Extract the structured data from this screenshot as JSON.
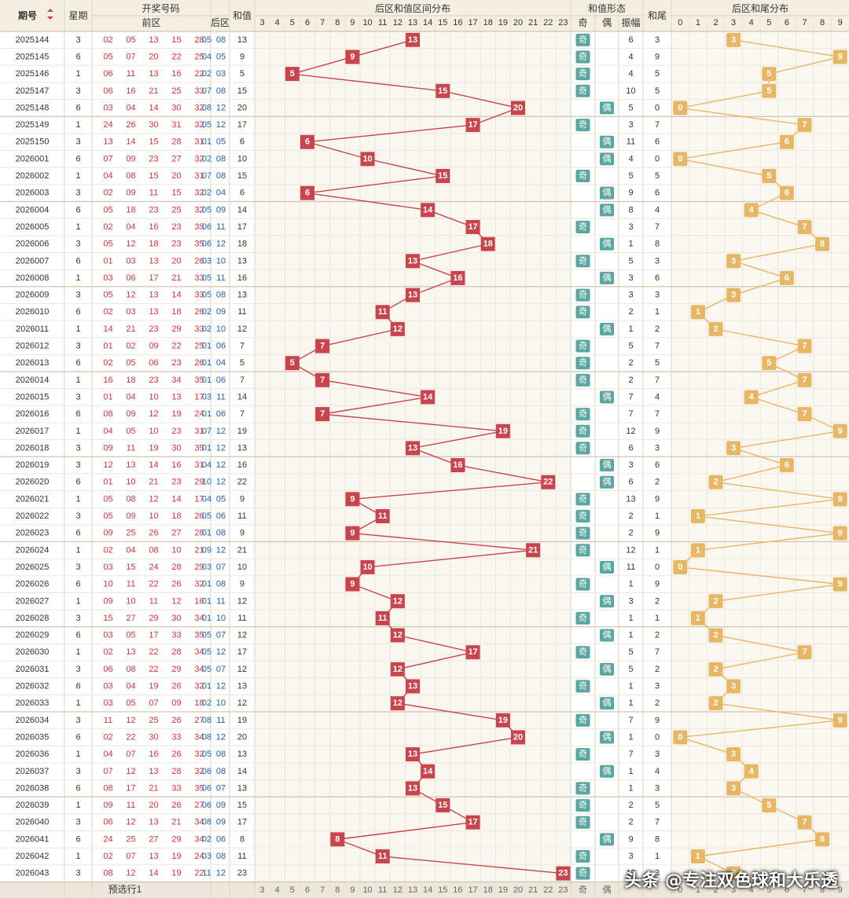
{
  "headers": {
    "issue": "期号",
    "weekday": "星期",
    "draw_numbers": "开奖号码",
    "front": "前区",
    "back": "后区",
    "sum": "和值",
    "sum_dist": "后区和值区间分布",
    "sum_form": "和值形态",
    "odd": "奇",
    "even": "偶",
    "amplitude": "振幅",
    "tail": "和尾",
    "tail_dist": "后区和尾分布"
  },
  "footer": {
    "preselect": "预选行1"
  },
  "watermark": "头条 @专注双色球和大乐透",
  "colors": {
    "front": "#d0343e",
    "back": "#1f5fae",
    "sum_marker": "#c8454e",
    "tail_marker": "#e8b765",
    "odd_badge": "#5aa7a1"
  },
  "chart_data": {
    "type": "table",
    "sum_columns": [
      3,
      4,
      5,
      6,
      7,
      8,
      9,
      10,
      11,
      12,
      13,
      14,
      15,
      16,
      17,
      18,
      19,
      20,
      21,
      22,
      23
    ],
    "tail_columns": [
      0,
      1,
      2,
      3,
      4,
      5,
      6,
      7,
      8,
      9
    ],
    "rows": [
      {
        "issue": "2025144",
        "wd": 3,
        "front": [
          "02",
          "05",
          "13",
          "15",
          "28"
        ],
        "back": [
          "05",
          "08"
        ],
        "sum": 13,
        "parity": "奇",
        "amp": 6,
        "tail": 3
      },
      {
        "issue": "2025145",
        "wd": 6,
        "front": [
          "05",
          "07",
          "20",
          "22",
          "25"
        ],
        "back": [
          "04",
          "05"
        ],
        "sum": 9,
        "parity": "奇",
        "amp": 4,
        "tail": 9
      },
      {
        "issue": "2025146",
        "wd": 1,
        "front": [
          "06",
          "11",
          "13",
          "16",
          "22"
        ],
        "back": [
          "02",
          "03"
        ],
        "sum": 5,
        "parity": "奇",
        "amp": 4,
        "tail": 5
      },
      {
        "issue": "2025147",
        "wd": 3,
        "front": [
          "06",
          "16",
          "21",
          "25",
          "33"
        ],
        "back": [
          "07",
          "08"
        ],
        "sum": 15,
        "parity": "奇",
        "amp": 10,
        "tail": 5
      },
      {
        "issue": "2025148",
        "wd": 6,
        "front": [
          "03",
          "04",
          "14",
          "30",
          "32"
        ],
        "back": [
          "08",
          "12"
        ],
        "sum": 20,
        "parity": "偶",
        "amp": 5,
        "tail": 0
      },
      {
        "issue": "2025149",
        "wd": 1,
        "front": [
          "24",
          "26",
          "30",
          "31",
          "32"
        ],
        "back": [
          "05",
          "12"
        ],
        "sum": 17,
        "parity": "奇",
        "amp": 3,
        "tail": 7
      },
      {
        "issue": "2025150",
        "wd": 3,
        "front": [
          "13",
          "14",
          "15",
          "28",
          "31"
        ],
        "back": [
          "01",
          "05"
        ],
        "sum": 6,
        "parity": "偶",
        "amp": 11,
        "tail": 6
      },
      {
        "issue": "2026001",
        "wd": 6,
        "front": [
          "07",
          "09",
          "23",
          "27",
          "32"
        ],
        "back": [
          "02",
          "08"
        ],
        "sum": 10,
        "parity": "偶",
        "amp": 4,
        "tail": 0
      },
      {
        "issue": "2026002",
        "wd": 1,
        "front": [
          "04",
          "08",
          "15",
          "20",
          "31"
        ],
        "back": [
          "07",
          "08"
        ],
        "sum": 15,
        "parity": "奇",
        "amp": 5,
        "tail": 5
      },
      {
        "issue": "2026003",
        "wd": 3,
        "front": [
          "02",
          "09",
          "11",
          "15",
          "32"
        ],
        "back": [
          "02",
          "04"
        ],
        "sum": 6,
        "parity": "偶",
        "amp": 9,
        "tail": 6
      },
      {
        "issue": "2026004",
        "wd": 6,
        "front": [
          "05",
          "18",
          "23",
          "25",
          "32"
        ],
        "back": [
          "05",
          "09"
        ],
        "sum": 14,
        "parity": "偶",
        "amp": 8,
        "tail": 4
      },
      {
        "issue": "2026005",
        "wd": 1,
        "front": [
          "02",
          "04",
          "16",
          "23",
          "35"
        ],
        "back": [
          "06",
          "11"
        ],
        "sum": 17,
        "parity": "奇",
        "amp": 3,
        "tail": 7
      },
      {
        "issue": "2026006",
        "wd": 3,
        "front": [
          "05",
          "12",
          "18",
          "23",
          "35"
        ],
        "back": [
          "06",
          "12"
        ],
        "sum": 18,
        "parity": "偶",
        "amp": 1,
        "tail": 8
      },
      {
        "issue": "2026007",
        "wd": 6,
        "front": [
          "01",
          "03",
          "13",
          "20",
          "26"
        ],
        "back": [
          "03",
          "10"
        ],
        "sum": 13,
        "parity": "奇",
        "amp": 5,
        "tail": 3
      },
      {
        "issue": "2026008",
        "wd": 1,
        "front": [
          "03",
          "06",
          "17",
          "21",
          "33"
        ],
        "back": [
          "05",
          "11"
        ],
        "sum": 16,
        "parity": "偶",
        "amp": 3,
        "tail": 6
      },
      {
        "issue": "2026009",
        "wd": 3,
        "front": [
          "05",
          "12",
          "13",
          "14",
          "33"
        ],
        "back": [
          "05",
          "08"
        ],
        "sum": 13,
        "parity": "奇",
        "amp": 3,
        "tail": 3
      },
      {
        "issue": "2026010",
        "wd": 6,
        "front": [
          "02",
          "03",
          "13",
          "18",
          "26"
        ],
        "back": [
          "02",
          "09"
        ],
        "sum": 11,
        "parity": "奇",
        "amp": 2,
        "tail": 1
      },
      {
        "issue": "2026011",
        "wd": 1,
        "front": [
          "14",
          "21",
          "23",
          "29",
          "33"
        ],
        "back": [
          "02",
          "10"
        ],
        "sum": 12,
        "parity": "偶",
        "amp": 1,
        "tail": 2
      },
      {
        "issue": "2026012",
        "wd": 3,
        "front": [
          "01",
          "02",
          "09",
          "22",
          "25"
        ],
        "back": [
          "01",
          "06"
        ],
        "sum": 7,
        "parity": "奇",
        "amp": 5,
        "tail": 7
      },
      {
        "issue": "2026013",
        "wd": 6,
        "front": [
          "02",
          "05",
          "06",
          "23",
          "26"
        ],
        "back": [
          "01",
          "04"
        ],
        "sum": 5,
        "parity": "奇",
        "amp": 2,
        "tail": 5
      },
      {
        "issue": "2026014",
        "wd": 1,
        "front": [
          "16",
          "18",
          "23",
          "34",
          "35"
        ],
        "back": [
          "01",
          "06"
        ],
        "sum": 7,
        "parity": "奇",
        "amp": 2,
        "tail": 7
      },
      {
        "issue": "2026015",
        "wd": 3,
        "front": [
          "01",
          "04",
          "10",
          "13",
          "17"
        ],
        "back": [
          "03",
          "11"
        ],
        "sum": 14,
        "parity": "偶",
        "amp": 7,
        "tail": 4
      },
      {
        "issue": "2026016",
        "wd": 6,
        "front": [
          "08",
          "09",
          "12",
          "19",
          "24"
        ],
        "back": [
          "01",
          "06"
        ],
        "sum": 7,
        "parity": "奇",
        "amp": 7,
        "tail": 7
      },
      {
        "issue": "2026017",
        "wd": 1,
        "front": [
          "04",
          "05",
          "10",
          "23",
          "31"
        ],
        "back": [
          "07",
          "12"
        ],
        "sum": 19,
        "parity": "奇",
        "amp": 12,
        "tail": 9
      },
      {
        "issue": "2026018",
        "wd": 3,
        "front": [
          "09",
          "11",
          "19",
          "30",
          "35"
        ],
        "back": [
          "01",
          "12"
        ],
        "sum": 13,
        "parity": "奇",
        "amp": 6,
        "tail": 3
      },
      {
        "issue": "2026019",
        "wd": 3,
        "front": [
          "12",
          "13",
          "14",
          "16",
          "31"
        ],
        "back": [
          "04",
          "12"
        ],
        "sum": 16,
        "parity": "偶",
        "amp": 3,
        "tail": 6
      },
      {
        "issue": "2026020",
        "wd": 6,
        "front": [
          "01",
          "10",
          "21",
          "23",
          "29"
        ],
        "back": [
          "10",
          "12"
        ],
        "sum": 22,
        "parity": "偶",
        "amp": 6,
        "tail": 2
      },
      {
        "issue": "2026021",
        "wd": 1,
        "front": [
          "05",
          "08",
          "12",
          "14",
          "17"
        ],
        "back": [
          "04",
          "05"
        ],
        "sum": 9,
        "parity": "奇",
        "amp": 13,
        "tail": 9
      },
      {
        "issue": "2026022",
        "wd": 3,
        "front": [
          "05",
          "09",
          "10",
          "18",
          "26"
        ],
        "back": [
          "05",
          "06"
        ],
        "sum": 11,
        "parity": "奇",
        "amp": 2,
        "tail": 1
      },
      {
        "issue": "2026023",
        "wd": 6,
        "front": [
          "09",
          "25",
          "26",
          "27",
          "28"
        ],
        "back": [
          "01",
          "08"
        ],
        "sum": 9,
        "parity": "奇",
        "amp": 2,
        "tail": 9
      },
      {
        "issue": "2026024",
        "wd": 1,
        "front": [
          "02",
          "04",
          "08",
          "10",
          "21"
        ],
        "back": [
          "09",
          "12"
        ],
        "sum": 21,
        "parity": "奇",
        "amp": 12,
        "tail": 1
      },
      {
        "issue": "2026025",
        "wd": 3,
        "front": [
          "03",
          "15",
          "24",
          "28",
          "29"
        ],
        "back": [
          "03",
          "07"
        ],
        "sum": 10,
        "parity": "偶",
        "amp": 11,
        "tail": 0
      },
      {
        "issue": "2026026",
        "wd": 6,
        "front": [
          "10",
          "11",
          "22",
          "26",
          "32"
        ],
        "back": [
          "01",
          "08"
        ],
        "sum": 9,
        "parity": "奇",
        "amp": 1,
        "tail": 9
      },
      {
        "issue": "2026027",
        "wd": 1,
        "front": [
          "09",
          "10",
          "11",
          "12",
          "16"
        ],
        "back": [
          "01",
          "11"
        ],
        "sum": 12,
        "parity": "偶",
        "amp": 3,
        "tail": 2
      },
      {
        "issue": "2026028",
        "wd": 3,
        "front": [
          "15",
          "27",
          "29",
          "30",
          "34"
        ],
        "back": [
          "01",
          "10"
        ],
        "sum": 11,
        "parity": "奇",
        "amp": 1,
        "tail": 1
      },
      {
        "issue": "2026029",
        "wd": 6,
        "front": [
          "03",
          "05",
          "17",
          "33",
          "35"
        ],
        "back": [
          "05",
          "07"
        ],
        "sum": 12,
        "parity": "偶",
        "amp": 1,
        "tail": 2
      },
      {
        "issue": "2026030",
        "wd": 1,
        "front": [
          "02",
          "13",
          "22",
          "28",
          "34"
        ],
        "back": [
          "05",
          "12"
        ],
        "sum": 17,
        "parity": "奇",
        "amp": 5,
        "tail": 7
      },
      {
        "issue": "2026031",
        "wd": 3,
        "front": [
          "06",
          "08",
          "22",
          "29",
          "34"
        ],
        "back": [
          "05",
          "07"
        ],
        "sum": 12,
        "parity": "偶",
        "amp": 5,
        "tail": 2
      },
      {
        "issue": "2026032",
        "wd": 6,
        "front": [
          "03",
          "04",
          "19",
          "26",
          "32"
        ],
        "back": [
          "01",
          "12"
        ],
        "sum": 13,
        "parity": "奇",
        "amp": 1,
        "tail": 3
      },
      {
        "issue": "2026033",
        "wd": 1,
        "front": [
          "03",
          "05",
          "07",
          "09",
          "18"
        ],
        "back": [
          "02",
          "10"
        ],
        "sum": 12,
        "parity": "偶",
        "amp": 1,
        "tail": 2
      },
      {
        "issue": "2026034",
        "wd": 3,
        "front": [
          "11",
          "12",
          "25",
          "26",
          "27"
        ],
        "back": [
          "08",
          "11"
        ],
        "sum": 19,
        "parity": "奇",
        "amp": 7,
        "tail": 9
      },
      {
        "issue": "2026035",
        "wd": 6,
        "front": [
          "02",
          "22",
          "30",
          "33",
          "34"
        ],
        "back": [
          "08",
          "12"
        ],
        "sum": 20,
        "parity": "偶",
        "amp": 1,
        "tail": 0
      },
      {
        "issue": "2026036",
        "wd": 1,
        "front": [
          "04",
          "07",
          "16",
          "26",
          "32"
        ],
        "back": [
          "05",
          "08"
        ],
        "sum": 13,
        "parity": "奇",
        "amp": 7,
        "tail": 3
      },
      {
        "issue": "2026037",
        "wd": 3,
        "front": [
          "07",
          "12",
          "13",
          "28",
          "32"
        ],
        "back": [
          "06",
          "08"
        ],
        "sum": 14,
        "parity": "偶",
        "amp": 1,
        "tail": 4
      },
      {
        "issue": "2026038",
        "wd": 6,
        "front": [
          "08",
          "17",
          "21",
          "33",
          "35"
        ],
        "back": [
          "06",
          "07"
        ],
        "sum": 13,
        "parity": "奇",
        "amp": 1,
        "tail": 3
      },
      {
        "issue": "2026039",
        "wd": 1,
        "front": [
          "09",
          "11",
          "20",
          "26",
          "27"
        ],
        "back": [
          "06",
          "09"
        ],
        "sum": 15,
        "parity": "奇",
        "amp": 2,
        "tail": 5
      },
      {
        "issue": "2026040",
        "wd": 3,
        "front": [
          "06",
          "12",
          "13",
          "21",
          "34"
        ],
        "back": [
          "08",
          "09"
        ],
        "sum": 17,
        "parity": "奇",
        "amp": 2,
        "tail": 7
      },
      {
        "issue": "2026041",
        "wd": 6,
        "front": [
          "24",
          "25",
          "27",
          "29",
          "34"
        ],
        "back": [
          "02",
          "06"
        ],
        "sum": 8,
        "parity": "偶",
        "amp": 9,
        "tail": 8
      },
      {
        "issue": "2026042",
        "wd": 1,
        "front": [
          "02",
          "07",
          "13",
          "19",
          "24"
        ],
        "back": [
          "03",
          "08"
        ],
        "sum": 11,
        "parity": "奇",
        "amp": 3,
        "tail": 1
      },
      {
        "issue": "2026043",
        "wd": 3,
        "front": [
          "08",
          "12",
          "14",
          "19",
          "22"
        ],
        "back": [
          "11",
          "12"
        ],
        "sum": 23,
        "parity": "奇",
        "amp": 12,
        "tail": 3
      }
    ]
  }
}
